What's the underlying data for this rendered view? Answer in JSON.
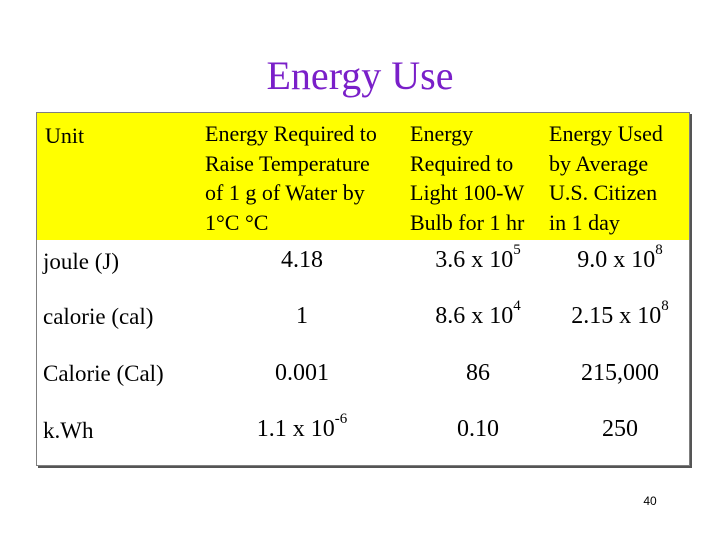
{
  "title": "Energy Use",
  "header": {
    "unit": "Unit",
    "col1": [
      "Energy Required to",
      "Raise Temperature",
      "of 1 g of Water by",
      "1°C °C"
    ],
    "col2": [
      "Energy",
      "Required to",
      "Light 100-W",
      "Bulb for 1 hr"
    ],
    "col3": [
      "Energy Used",
      "by Average",
      "U.S. Citizen",
      "in 1 day"
    ]
  },
  "rows": [
    {
      "unit": "joule (J)",
      "c1": {
        "base": "4.18",
        "exp": ""
      },
      "c2": {
        "base": "3.6 x 10",
        "exp": "5"
      },
      "c3": {
        "base": "9.0 x 10",
        "exp": "8"
      }
    },
    {
      "unit": "calorie (cal)",
      "c1": {
        "base": "1",
        "exp": ""
      },
      "c2": {
        "base": "8.6 x 10",
        "exp": "4"
      },
      "c3": {
        "base": "2.15 x 10",
        "exp": "8"
      }
    },
    {
      "unit": "Calorie (Cal)",
      "c1": {
        "base": "0.001",
        "exp": ""
      },
      "c2": {
        "base": "86",
        "exp": ""
      },
      "c3": {
        "base": "215,000",
        "exp": ""
      }
    },
    {
      "unit": "k.Wh",
      "c1": {
        "base": "1.1 x 10",
        "exp": "-6"
      },
      "c2": {
        "base": "0.10",
        "exp": ""
      },
      "c3": {
        "base": "250",
        "exp": ""
      }
    }
  ],
  "page_number": "40",
  "colors": {
    "title": "#7a1fc9",
    "header_band": "#ffff00"
  }
}
